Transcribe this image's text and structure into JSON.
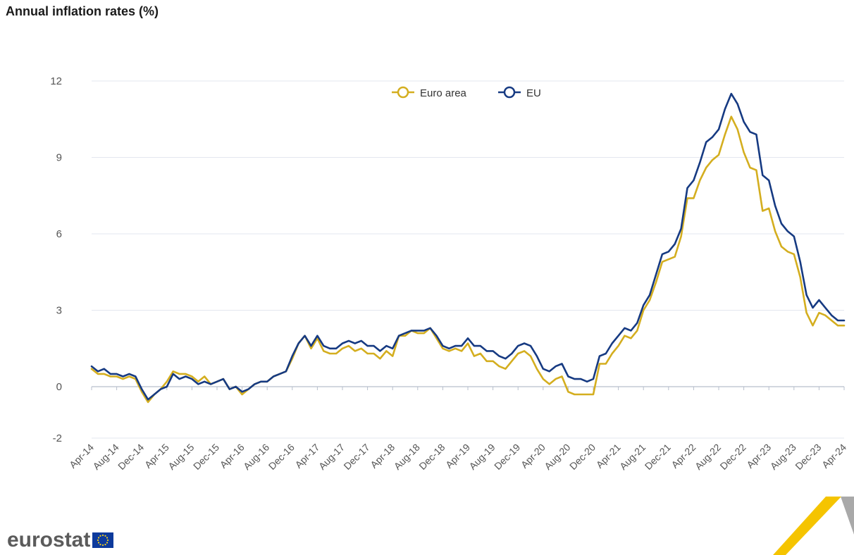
{
  "page": {
    "title": "Annual inflation rates (%)"
  },
  "logo": {
    "text": "eurostat"
  },
  "colors": {
    "euro_area": "#d4ae1f",
    "eu": "#163a82",
    "grid": "#e3e7ef",
    "zero_line": "#b7bfcc"
  },
  "chart_data": {
    "type": "line",
    "title": "Annual inflation rates (%)",
    "xlabel": "",
    "ylabel": "",
    "ylim": [
      -2,
      12
    ],
    "y_ticks": [
      -2,
      0,
      3,
      6,
      9,
      12
    ],
    "grid": true,
    "legend_position": "top-center",
    "x": [
      "2014-04",
      "2014-05",
      "2014-06",
      "2014-07",
      "2014-08",
      "2014-09",
      "2014-10",
      "2014-11",
      "2014-12",
      "2015-01",
      "2015-02",
      "2015-03",
      "2015-04",
      "2015-05",
      "2015-06",
      "2015-07",
      "2015-08",
      "2015-09",
      "2015-10",
      "2015-11",
      "2015-12",
      "2016-01",
      "2016-02",
      "2016-03",
      "2016-04",
      "2016-05",
      "2016-06",
      "2016-07",
      "2016-08",
      "2016-09",
      "2016-10",
      "2016-11",
      "2016-12",
      "2017-01",
      "2017-02",
      "2017-03",
      "2017-04",
      "2017-05",
      "2017-06",
      "2017-07",
      "2017-08",
      "2017-09",
      "2017-10",
      "2017-11",
      "2017-12",
      "2018-01",
      "2018-02",
      "2018-03",
      "2018-04",
      "2018-05",
      "2018-06",
      "2018-07",
      "2018-08",
      "2018-09",
      "2018-10",
      "2018-11",
      "2018-12",
      "2019-01",
      "2019-02",
      "2019-03",
      "2019-04",
      "2019-05",
      "2019-06",
      "2019-07",
      "2019-08",
      "2019-09",
      "2019-10",
      "2019-11",
      "2019-12",
      "2020-01",
      "2020-02",
      "2020-03",
      "2020-04",
      "2020-05",
      "2020-06",
      "2020-07",
      "2020-08",
      "2020-09",
      "2020-10",
      "2020-11",
      "2020-12",
      "2021-01",
      "2021-02",
      "2021-03",
      "2021-04",
      "2021-05",
      "2021-06",
      "2021-07",
      "2021-08",
      "2021-09",
      "2021-10",
      "2021-11",
      "2021-12",
      "2022-01",
      "2022-02",
      "2022-03",
      "2022-04",
      "2022-05",
      "2022-06",
      "2022-07",
      "2022-08",
      "2022-09",
      "2022-10",
      "2022-11",
      "2022-12",
      "2023-01",
      "2023-02",
      "2023-03",
      "2023-04",
      "2023-05",
      "2023-06",
      "2023-07",
      "2023-08",
      "2023-09",
      "2023-10",
      "2023-11",
      "2023-12",
      "2024-01",
      "2024-02",
      "2024-03",
      "2024-04"
    ],
    "x_tick_labels": [
      "Apr-14",
      "Aug-14",
      "Dec-14",
      "Apr-15",
      "Aug-15",
      "Dec-15",
      "Apr-16",
      "Aug-16",
      "Dec-16",
      "Apr-17",
      "Aug-17",
      "Dec-17",
      "Apr-18",
      "Aug-18",
      "Dec-18",
      "Apr-19",
      "Aug-19",
      "Dec-19",
      "Apr-20",
      "Aug-20",
      "Dec-20",
      "Apr-21",
      "Aug-21",
      "Dec-21",
      "Apr-22",
      "Aug-22",
      "Dec-22",
      "Apr-23",
      "Aug-23",
      "Dec-23",
      "Apr-24"
    ],
    "series": [
      {
        "name": "Euro area",
        "values": [
          0.7,
          0.5,
          0.5,
          0.4,
          0.4,
          0.3,
          0.4,
          0.3,
          -0.2,
          -0.6,
          -0.3,
          -0.1,
          0.2,
          0.6,
          0.5,
          0.5,
          0.4,
          0.2,
          0.4,
          0.1,
          0.2,
          0.3,
          -0.1,
          0.0,
          -0.3,
          -0.1,
          0.1,
          0.2,
          0.2,
          0.4,
          0.5,
          0.6,
          1.1,
          1.7,
          2.0,
          1.5,
          1.9,
          1.4,
          1.3,
          1.3,
          1.5,
          1.6,
          1.4,
          1.5,
          1.3,
          1.3,
          1.1,
          1.4,
          1.2,
          2.0,
          2.0,
          2.2,
          2.1,
          2.1,
          2.3,
          1.9,
          1.5,
          1.4,
          1.5,
          1.4,
          1.7,
          1.2,
          1.3,
          1.0,
          1.0,
          0.8,
          0.7,
          1.0,
          1.3,
          1.4,
          1.2,
          0.7,
          0.3,
          0.1,
          0.3,
          0.4,
          -0.2,
          -0.3,
          -0.3,
          -0.3,
          -0.3,
          0.9,
          0.9,
          1.3,
          1.6,
          2.0,
          1.9,
          2.2,
          3.0,
          3.4,
          4.1,
          4.9,
          5.0,
          5.1,
          5.9,
          7.4,
          7.4,
          8.1,
          8.6,
          8.9,
          9.1,
          9.9,
          10.6,
          10.1,
          9.2,
          8.6,
          8.5,
          6.9,
          7.0,
          6.1,
          5.5,
          5.3,
          5.2,
          4.3,
          2.9,
          2.4,
          2.9,
          2.8,
          2.6,
          2.4,
          2.4
        ]
      },
      {
        "name": "EU",
        "values": [
          0.8,
          0.6,
          0.7,
          0.5,
          0.5,
          0.4,
          0.5,
          0.4,
          -0.1,
          -0.5,
          -0.3,
          -0.1,
          0.0,
          0.5,
          0.3,
          0.4,
          0.3,
          0.1,
          0.2,
          0.1,
          0.2,
          0.3,
          -0.1,
          0.0,
          -0.2,
          -0.1,
          0.1,
          0.2,
          0.2,
          0.4,
          0.5,
          0.6,
          1.2,
          1.7,
          2.0,
          1.6,
          2.0,
          1.6,
          1.5,
          1.5,
          1.7,
          1.8,
          1.7,
          1.8,
          1.6,
          1.6,
          1.4,
          1.6,
          1.5,
          2.0,
          2.1,
          2.2,
          2.2,
          2.2,
          2.3,
          2.0,
          1.6,
          1.5,
          1.6,
          1.6,
          1.9,
          1.6,
          1.6,
          1.4,
          1.4,
          1.2,
          1.1,
          1.3,
          1.6,
          1.7,
          1.6,
          1.2,
          0.7,
          0.6,
          0.8,
          0.9,
          0.4,
          0.3,
          0.3,
          0.2,
          0.3,
          1.2,
          1.3,
          1.7,
          2.0,
          2.3,
          2.2,
          2.5,
          3.2,
          3.6,
          4.4,
          5.2,
          5.3,
          5.6,
          6.2,
          7.8,
          8.1,
          8.8,
          9.6,
          9.8,
          10.1,
          10.9,
          11.5,
          11.1,
          10.4,
          10.0,
          9.9,
          8.3,
          8.1,
          7.1,
          6.4,
          6.1,
          5.9,
          4.9,
          3.6,
          3.1,
          3.4,
          3.1,
          2.8,
          2.6,
          2.6
        ]
      }
    ]
  }
}
